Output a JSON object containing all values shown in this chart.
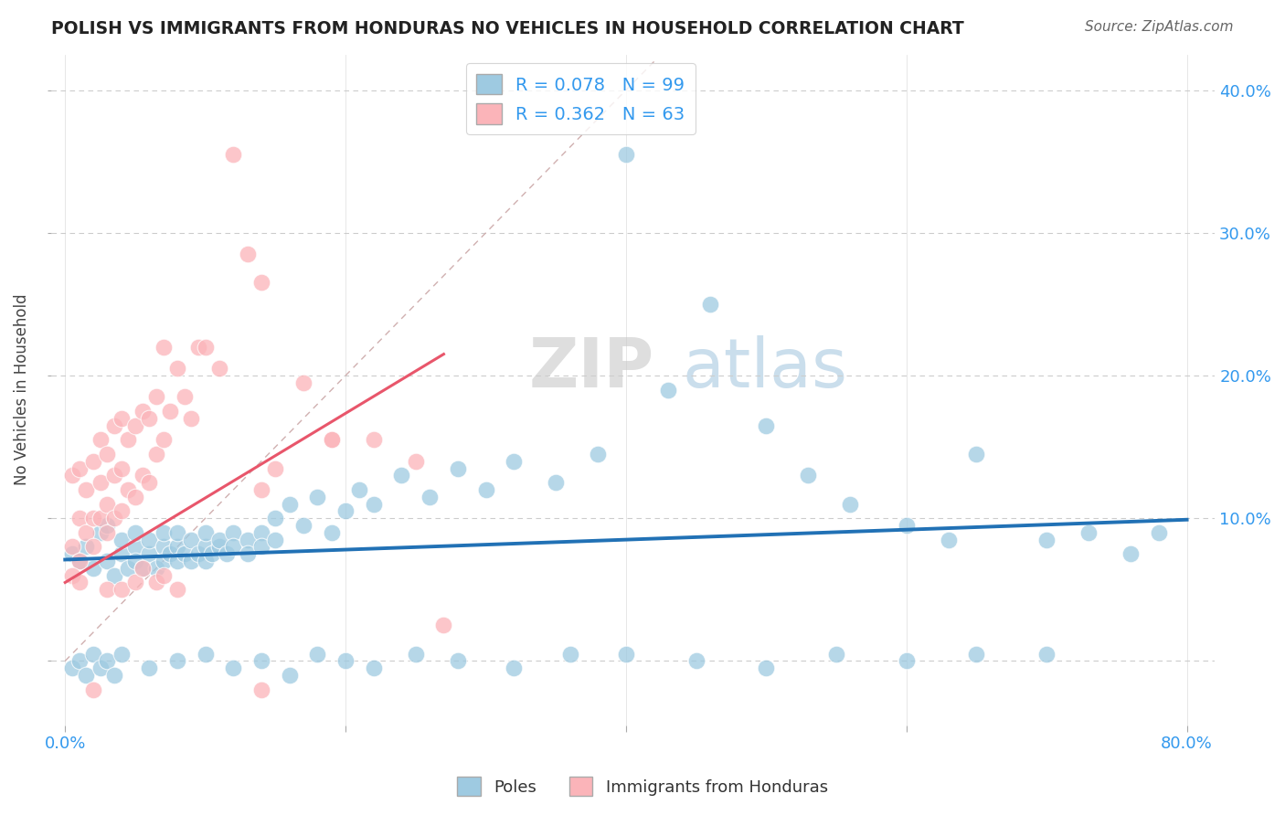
{
  "title": "POLISH VS IMMIGRANTS FROM HONDURAS NO VEHICLES IN HOUSEHOLD CORRELATION CHART",
  "source": "Source: ZipAtlas.com",
  "ylabel": "No Vehicles in Household",
  "xlim": [
    -0.01,
    0.82
  ],
  "ylim": [
    -0.045,
    0.425
  ],
  "yticks": [
    0.0,
    0.1,
    0.2,
    0.3,
    0.4
  ],
  "xticks": [
    0.0,
    0.2,
    0.4,
    0.6,
    0.8
  ],
  "color_poles": "#9ecae1",
  "color_honduras": "#fbb4b9",
  "color_poles_line": "#2171b5",
  "color_honduras_line": "#e8566b",
  "color_diagonal": "#d0b0b0",
  "watermark_left": "ZIP",
  "watermark_right": "atlas",
  "poles_R": 0.078,
  "poles_N": 99,
  "honduras_R": 0.362,
  "honduras_N": 63,
  "poles_line_x0": 0.0,
  "poles_line_y0": 0.071,
  "poles_line_x1": 0.8,
  "poles_line_y1": 0.099,
  "honduras_line_x0": 0.0,
  "honduras_line_y0": 0.055,
  "honduras_line_x1": 0.27,
  "honduras_line_y1": 0.215,
  "poles_x": [
    0.005,
    0.01,
    0.015,
    0.02,
    0.025,
    0.03,
    0.03,
    0.035,
    0.04,
    0.04,
    0.045,
    0.05,
    0.05,
    0.05,
    0.055,
    0.06,
    0.06,
    0.065,
    0.07,
    0.07,
    0.07,
    0.075,
    0.08,
    0.08,
    0.08,
    0.085,
    0.09,
    0.09,
    0.095,
    0.1,
    0.1,
    0.1,
    0.105,
    0.11,
    0.11,
    0.115,
    0.12,
    0.12,
    0.13,
    0.13,
    0.14,
    0.14,
    0.15,
    0.15,
    0.16,
    0.17,
    0.18,
    0.19,
    0.2,
    0.21,
    0.22,
    0.24,
    0.26,
    0.28,
    0.3,
    0.32,
    0.35,
    0.38,
    0.4,
    0.43,
    0.46,
    0.5,
    0.53,
    0.56,
    0.6,
    0.63,
    0.65,
    0.7,
    0.73,
    0.78,
    0.005,
    0.01,
    0.015,
    0.02,
    0.025,
    0.03,
    0.035,
    0.04,
    0.06,
    0.08,
    0.1,
    0.12,
    0.14,
    0.16,
    0.18,
    0.2,
    0.22,
    0.25,
    0.28,
    0.32,
    0.36,
    0.4,
    0.45,
    0.5,
    0.55,
    0.6,
    0.65,
    0.7,
    0.76
  ],
  "poles_y": [
    0.075,
    0.07,
    0.08,
    0.065,
    0.09,
    0.07,
    0.095,
    0.06,
    0.075,
    0.085,
    0.065,
    0.08,
    0.07,
    0.09,
    0.065,
    0.075,
    0.085,
    0.065,
    0.08,
    0.07,
    0.09,
    0.075,
    0.08,
    0.07,
    0.09,
    0.075,
    0.07,
    0.085,
    0.075,
    0.08,
    0.07,
    0.09,
    0.075,
    0.08,
    0.085,
    0.075,
    0.09,
    0.08,
    0.085,
    0.075,
    0.09,
    0.08,
    0.1,
    0.085,
    0.11,
    0.095,
    0.115,
    0.09,
    0.105,
    0.12,
    0.11,
    0.13,
    0.115,
    0.135,
    0.12,
    0.14,
    0.125,
    0.145,
    0.355,
    0.19,
    0.25,
    0.165,
    0.13,
    0.11,
    0.095,
    0.085,
    0.145,
    0.085,
    0.09,
    0.09,
    -0.005,
    0.0,
    -0.01,
    0.005,
    -0.005,
    0.0,
    -0.01,
    0.005,
    -0.005,
    0.0,
    0.005,
    -0.005,
    0.0,
    -0.01,
    0.005,
    0.0,
    -0.005,
    0.005,
    0.0,
    -0.005,
    0.005,
    0.005,
    0.0,
    -0.005,
    0.005,
    0.0,
    0.005,
    0.005,
    0.075
  ],
  "honduras_x": [
    0.005,
    0.005,
    0.01,
    0.01,
    0.01,
    0.015,
    0.015,
    0.02,
    0.02,
    0.02,
    0.025,
    0.025,
    0.025,
    0.03,
    0.03,
    0.03,
    0.035,
    0.035,
    0.035,
    0.04,
    0.04,
    0.04,
    0.045,
    0.045,
    0.05,
    0.05,
    0.055,
    0.055,
    0.06,
    0.06,
    0.065,
    0.065,
    0.07,
    0.07,
    0.075,
    0.08,
    0.085,
    0.09,
    0.095,
    0.1,
    0.11,
    0.12,
    0.13,
    0.14,
    0.15,
    0.17,
    0.19,
    0.22,
    0.25,
    0.27,
    0.005,
    0.01,
    0.02,
    0.03,
    0.04,
    0.05,
    0.055,
    0.065,
    0.07,
    0.08,
    0.14,
    0.19,
    0.14
  ],
  "honduras_y": [
    0.08,
    0.13,
    0.07,
    0.1,
    0.135,
    0.09,
    0.12,
    0.08,
    0.1,
    0.14,
    0.1,
    0.125,
    0.155,
    0.09,
    0.11,
    0.145,
    0.1,
    0.13,
    0.165,
    0.105,
    0.135,
    0.17,
    0.12,
    0.155,
    0.115,
    0.165,
    0.13,
    0.175,
    0.125,
    0.17,
    0.145,
    0.185,
    0.155,
    0.22,
    0.175,
    0.205,
    0.185,
    0.17,
    0.22,
    0.22,
    0.205,
    0.355,
    0.285,
    0.265,
    0.135,
    0.195,
    0.155,
    0.155,
    0.14,
    0.025,
    0.06,
    0.055,
    -0.02,
    0.05,
    0.05,
    0.055,
    0.065,
    0.055,
    0.06,
    0.05,
    0.12,
    0.155,
    -0.02
  ]
}
